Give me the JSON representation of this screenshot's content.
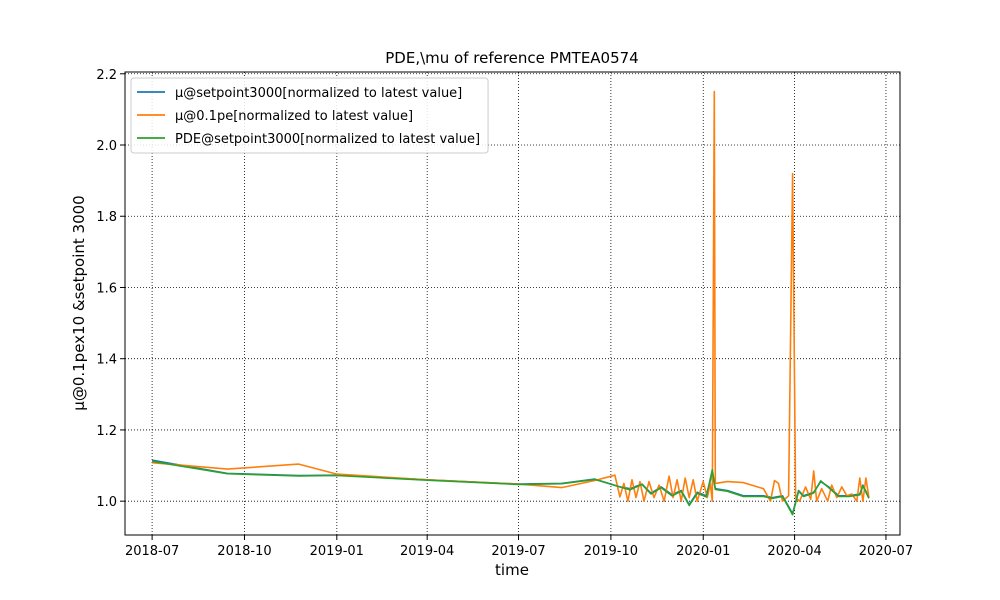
{
  "chart_data": {
    "type": "line",
    "title": "PDE,\\mu of reference PMTEA0574",
    "xlabel": "time",
    "ylabel": "μ@0.1pex10 &setpoint 3000",
    "xlim": [
      "2018-06-04",
      "2020-07-15"
    ],
    "ylim": [
      0.905,
      2.205
    ],
    "xticks": [
      "2018-07-01",
      "2018-10-01",
      "2019-01-01",
      "2019-04-01",
      "2019-07-01",
      "2019-10-01",
      "2020-01-01",
      "2020-04-01",
      "2020-07-01"
    ],
    "xtick_labels": [
      "2018-07",
      "2018-10",
      "2019-01",
      "2019-04",
      "2019-07",
      "2019-10",
      "2020-01",
      "2020-04",
      "2020-07"
    ],
    "yticks": [
      1.0,
      1.2,
      1.4,
      1.6,
      1.8,
      2.0,
      2.2
    ],
    "ytick_labels": [
      "1.0",
      "1.2",
      "1.4",
      "1.6",
      "1.8",
      "2.0",
      "2.2"
    ],
    "grid": true,
    "grid_style": "dotted",
    "legend_position": "top-left",
    "series": [
      {
        "name": "μ@setpoint3000[normalized to latest value]",
        "color": "#1f77b4",
        "points": [
          [
            "2018-07-01",
            1.115
          ],
          [
            "2018-09-14",
            1.078
          ],
          [
            "2018-11-24",
            1.072
          ],
          [
            "2019-01-01",
            1.073
          ],
          [
            "2019-04-01",
            1.06
          ],
          [
            "2019-07-01",
            1.048
          ],
          [
            "2019-08-13",
            1.05
          ],
          [
            "2019-09-15",
            1.062
          ],
          [
            "2019-10-10",
            1.04
          ],
          [
            "2019-10-20",
            1.035
          ],
          [
            "2019-11-01",
            1.048
          ],
          [
            "2019-11-10",
            1.022
          ],
          [
            "2019-11-20",
            1.04
          ],
          [
            "2019-12-01",
            1.018
          ],
          [
            "2019-12-10",
            1.03
          ],
          [
            "2019-12-18",
            0.99
          ],
          [
            "2019-12-26",
            1.025
          ],
          [
            "2020-01-04",
            1.015
          ],
          [
            "2020-01-10",
            1.08
          ],
          [
            "2020-01-13",
            1.035
          ],
          [
            "2020-01-25",
            1.03
          ],
          [
            "2020-02-10",
            1.015
          ],
          [
            "2020-03-01",
            1.015
          ],
          [
            "2020-03-10",
            1.01
          ],
          [
            "2020-03-20",
            1.015
          ],
          [
            "2020-03-30",
            0.965
          ],
          [
            "2020-04-05",
            1.03
          ],
          [
            "2020-04-10",
            1.015
          ],
          [
            "2020-04-20",
            1.025
          ],
          [
            "2020-04-27",
            1.055
          ],
          [
            "2020-05-05",
            1.04
          ],
          [
            "2020-05-15",
            1.015
          ],
          [
            "2020-05-25",
            1.015
          ],
          [
            "2020-06-05",
            1.02
          ],
          [
            "2020-06-08",
            1.045
          ],
          [
            "2020-06-14",
            1.01
          ]
        ]
      },
      {
        "name": "μ@0.1pe[normalized to latest value]",
        "color": "#ff7f0e",
        "points": [
          [
            "2018-07-01",
            1.108
          ],
          [
            "2018-09-14",
            1.09
          ],
          [
            "2018-11-24",
            1.104
          ],
          [
            "2019-01-01",
            1.076
          ],
          [
            "2019-04-01",
            1.06
          ],
          [
            "2019-07-01",
            1.048
          ],
          [
            "2019-08-13",
            1.038
          ],
          [
            "2019-09-15",
            1.058
          ],
          [
            "2019-10-05",
            1.073
          ],
          [
            "2019-10-10",
            1.012
          ],
          [
            "2019-10-14",
            1.05
          ],
          [
            "2019-10-18",
            1.0
          ],
          [
            "2019-10-22",
            1.06
          ],
          [
            "2019-10-26",
            1.01
          ],
          [
            "2019-10-30",
            1.055
          ],
          [
            "2019-11-03",
            1.0
          ],
          [
            "2019-11-08",
            1.055
          ],
          [
            "2019-11-13",
            1.01
          ],
          [
            "2019-11-18",
            1.045
          ],
          [
            "2019-11-23",
            1.0
          ],
          [
            "2019-11-28",
            1.07
          ],
          [
            "2019-12-02",
            1.01
          ],
          [
            "2019-12-06",
            1.06
          ],
          [
            "2019-12-10",
            1.0
          ],
          [
            "2019-12-14",
            1.065
          ],
          [
            "2019-12-18",
            1.01
          ],
          [
            "2019-12-22",
            1.06
          ],
          [
            "2019-12-26",
            1.0
          ],
          [
            "2020-01-01",
            1.055
          ],
          [
            "2020-01-05",
            1.01
          ],
          [
            "2020-01-08",
            1.05
          ],
          [
            "2020-01-10",
            1.0
          ],
          [
            "2020-01-12",
            2.15
          ],
          [
            "2020-01-13",
            1.05
          ],
          [
            "2020-01-25",
            1.055
          ],
          [
            "2020-02-10",
            1.052
          ],
          [
            "2020-03-01",
            1.035
          ],
          [
            "2020-03-08",
            1.0
          ],
          [
            "2020-03-12",
            1.058
          ],
          [
            "2020-03-16",
            1.05
          ],
          [
            "2020-03-20",
            1.0
          ],
          [
            "2020-03-26",
            1.015
          ],
          [
            "2020-03-30",
            1.92
          ],
          [
            "2020-04-02",
            1.01
          ],
          [
            "2020-04-06",
            1.0
          ],
          [
            "2020-04-12",
            1.04
          ],
          [
            "2020-04-17",
            1.005
          ],
          [
            "2020-04-20",
            1.085
          ],
          [
            "2020-04-23",
            1.0
          ],
          [
            "2020-04-28",
            1.035
          ],
          [
            "2020-05-04",
            1.0
          ],
          [
            "2020-05-08",
            1.045
          ],
          [
            "2020-05-13",
            1.01
          ],
          [
            "2020-05-18",
            1.04
          ],
          [
            "2020-05-23",
            1.015
          ],
          [
            "2020-05-28",
            1.02
          ],
          [
            "2020-06-02",
            1.0
          ],
          [
            "2020-06-05",
            1.065
          ],
          [
            "2020-06-08",
            1.0
          ],
          [
            "2020-06-11",
            1.065
          ],
          [
            "2020-06-14",
            1.01
          ]
        ]
      },
      {
        "name": "PDE@setpoint3000[normalized to latest value]",
        "color": "#2ca02c",
        "points": [
          [
            "2018-07-01",
            1.112
          ],
          [
            "2018-09-14",
            1.077
          ],
          [
            "2018-11-24",
            1.071
          ],
          [
            "2019-01-01",
            1.072
          ],
          [
            "2019-04-01",
            1.059
          ],
          [
            "2019-07-01",
            1.047
          ],
          [
            "2019-08-13",
            1.049
          ],
          [
            "2019-09-15",
            1.061
          ],
          [
            "2019-10-10",
            1.04
          ],
          [
            "2019-10-20",
            1.032
          ],
          [
            "2019-11-01",
            1.047
          ],
          [
            "2019-11-10",
            1.02
          ],
          [
            "2019-11-20",
            1.038
          ],
          [
            "2019-12-01",
            1.015
          ],
          [
            "2019-12-10",
            1.028
          ],
          [
            "2019-12-18",
            0.988
          ],
          [
            "2019-12-26",
            1.022
          ],
          [
            "2020-01-04",
            1.012
          ],
          [
            "2020-01-10",
            1.088
          ],
          [
            "2020-01-13",
            1.033
          ],
          [
            "2020-01-25",
            1.028
          ],
          [
            "2020-02-10",
            1.013
          ],
          [
            "2020-03-01",
            1.013
          ],
          [
            "2020-03-10",
            1.008
          ],
          [
            "2020-03-20",
            1.013
          ],
          [
            "2020-03-30",
            0.962
          ],
          [
            "2020-04-05",
            1.028
          ],
          [
            "2020-04-10",
            1.013
          ],
          [
            "2020-04-20",
            1.023
          ],
          [
            "2020-04-27",
            1.057
          ],
          [
            "2020-05-05",
            1.038
          ],
          [
            "2020-05-15",
            1.013
          ],
          [
            "2020-05-25",
            1.013
          ],
          [
            "2020-06-05",
            1.018
          ],
          [
            "2020-06-08",
            1.043
          ],
          [
            "2020-06-14",
            1.008
          ]
        ]
      }
    ]
  }
}
